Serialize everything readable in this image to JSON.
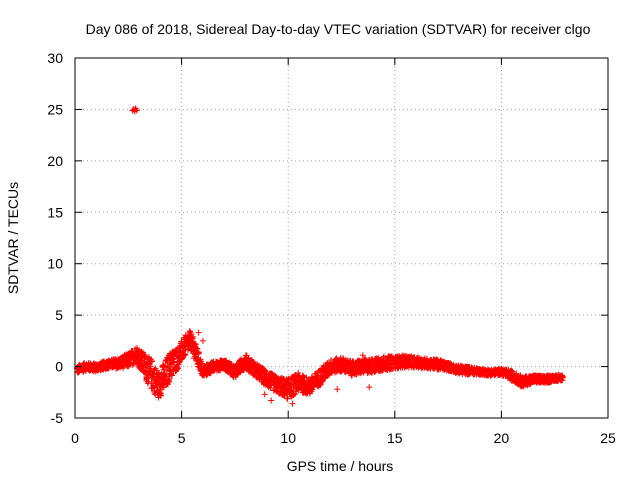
{
  "chart_data": {
    "type": "scatter",
    "title": "Day 086 of 2018, Sidereal Day-to-day VTEC variation (SDTVAR) for receiver clgo",
    "xlabel": "GPS time / hours",
    "ylabel": "SDTVAR / TECUs",
    "xlim": [
      0,
      25
    ],
    "ylim": [
      -5,
      30
    ],
    "xticks": [
      0,
      5,
      10,
      15,
      20,
      25
    ],
    "yticks": [
      -5,
      0,
      5,
      10,
      15,
      20,
      25,
      30
    ],
    "grid": true,
    "marker": "+",
    "color": "#ff0000",
    "series": [
      {
        "name": "SDTVAR",
        "envelope_x": [
          0.1,
          0.5,
          1.0,
          1.5,
          2.0,
          2.5,
          2.9,
          3.3,
          3.6,
          3.9,
          4.2,
          4.5,
          4.8,
          5.1,
          5.4,
          5.7,
          6.0,
          6.5,
          7.0,
          7.5,
          8.0,
          8.5,
          9.0,
          9.5,
          10.0,
          10.5,
          11.0,
          11.5,
          12.0,
          12.5,
          13.0,
          13.5,
          14.0,
          14.5,
          15.0,
          15.5,
          16.0,
          16.5,
          17.0,
          17.5,
          18.0,
          18.5,
          19.0,
          19.5,
          20.0,
          20.5,
          21.0,
          21.5,
          22.0,
          22.5,
          22.9
        ],
        "envelope_mid": [
          -0.3,
          0.0,
          -0.1,
          0.2,
          0.3,
          0.6,
          1.2,
          0.0,
          -0.8,
          -1.8,
          -1.0,
          0.2,
          0.8,
          1.8,
          2.6,
          1.2,
          -0.5,
          0.0,
          0.2,
          -0.5,
          0.5,
          -0.4,
          -1.2,
          -1.8,
          -2.2,
          -1.5,
          -2.0,
          -1.0,
          0.0,
          0.2,
          -0.2,
          0.0,
          0.1,
          0.3,
          0.4,
          0.5,
          0.4,
          0.3,
          0.2,
          0.0,
          -0.3,
          -0.4,
          -0.5,
          -0.6,
          -0.5,
          -0.9,
          -1.5,
          -1.2,
          -1.3,
          -1.1,
          -1.1
        ],
        "envelope_spread": [
          0.4,
          0.4,
          0.4,
          0.4,
          0.5,
          0.7,
          0.8,
          1.2,
          1.5,
          1.3,
          1.5,
          1.4,
          1.1,
          1.0,
          0.9,
          0.9,
          0.6,
          0.5,
          0.5,
          0.6,
          0.7,
          0.7,
          0.8,
          0.8,
          1.0,
          0.9,
          0.8,
          0.8,
          0.7,
          0.7,
          0.7,
          0.7,
          0.7,
          0.7,
          0.6,
          0.6,
          0.5,
          0.5,
          0.5,
          0.4,
          0.4,
          0.4,
          0.3,
          0.3,
          0.3,
          0.5,
          0.5,
          0.4,
          0.4,
          0.3,
          0.3
        ],
        "outliers": [
          {
            "x": 2.7,
            "y": 24.9
          },
          {
            "x": 2.75,
            "y": 25.0
          },
          {
            "x": 2.8,
            "y": 24.8
          },
          {
            "x": 2.85,
            "y": 25.1
          },
          {
            "x": 2.9,
            "y": 24.9
          },
          {
            "x": 2.82,
            "y": 25.0
          },
          {
            "x": 9.2,
            "y": -3.3
          },
          {
            "x": 8.9,
            "y": -2.7
          },
          {
            "x": 10.2,
            "y": -3.6
          },
          {
            "x": 13.8,
            "y": -2.0
          },
          {
            "x": 6.0,
            "y": 2.5
          },
          {
            "x": 5.8,
            "y": 3.3
          },
          {
            "x": 13.5,
            "y": 1.1
          },
          {
            "x": 12.3,
            "y": -2.2
          }
        ]
      }
    ]
  }
}
